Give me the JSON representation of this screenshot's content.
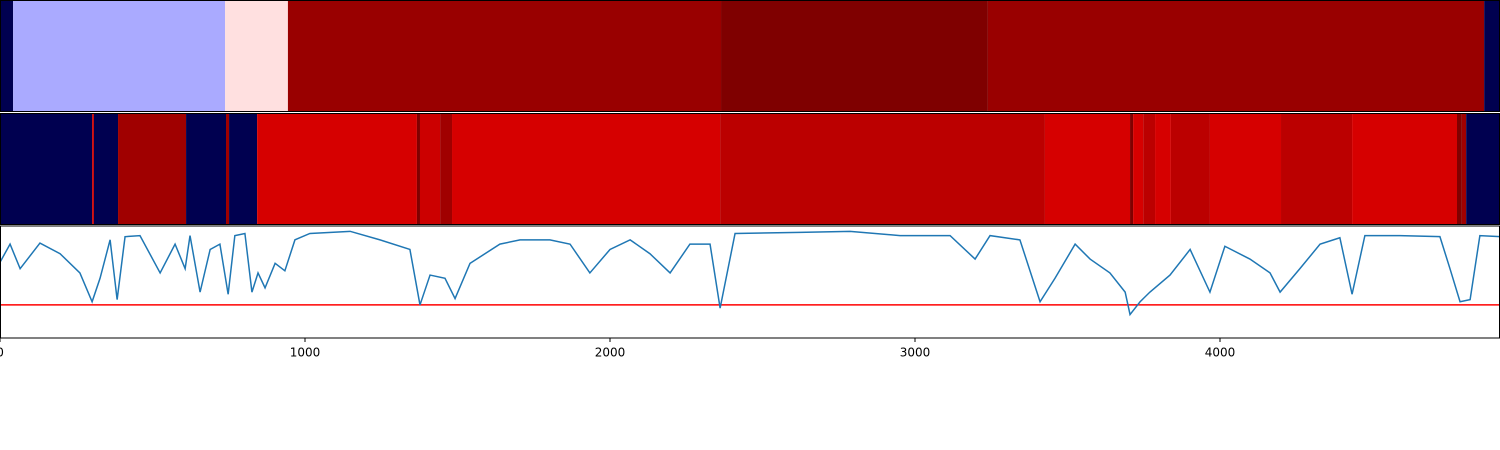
{
  "chart_data": [
    {
      "type": "segments",
      "xlim": [
        0,
        4918
      ],
      "edges": [
        0,
        43,
        738,
        944,
        2364,
        3239,
        4866,
        4918
      ],
      "colors": [
        "#000050",
        "#aaaaff",
        "#ffe0e0",
        "#990000",
        "#7f0000",
        "#990000",
        "#000050"
      ]
    },
    {
      "type": "segments",
      "xlim": [
        0,
        4918
      ],
      "edges": [
        0,
        302,
        308,
        387,
        610,
        741,
        751,
        843,
        1367,
        1377,
        1443,
        1482,
        2361,
        3426,
        3705,
        3715,
        3748,
        3787,
        3839,
        3967,
        4200,
        4433,
        4777,
        4793,
        4807,
        4918
      ],
      "colors": [
        "#000050",
        "#cc0000",
        "#000050",
        "#a00000",
        "#000050",
        "#a00000",
        "#000050",
        "#d60000",
        "#800000",
        "#cc0000",
        "#a00000",
        "#d60000",
        "#bb0000",
        "#d60000",
        "#800000",
        "#d60000",
        "#bb0000",
        "#d60000",
        "#bb0000",
        "#d60000",
        "#bb0000",
        "#d60000",
        "#800000",
        "#a00000",
        "#000050"
      ]
    },
    {
      "type": "line",
      "xlim": [
        0,
        4918
      ],
      "ylim": [
        0,
        1.05
      ],
      "xticks": [
        0,
        1000,
        2000,
        3000,
        4000
      ],
      "threshold": 0.31,
      "threshold_color": "#ff0000",
      "series": [
        {
          "color": "#1f77b4",
          "x": [
            0,
            33,
            66,
            131,
            197,
            262,
            302,
            328,
            361,
            384,
            410,
            459,
            525,
            574,
            607,
            623,
            656,
            689,
            721,
            748,
            770,
            803,
            826,
            846,
            869,
            902,
            934,
            967,
            1016,
            1148,
            1246,
            1344,
            1377,
            1410,
            1459,
            1492,
            1541,
            1639,
            1705,
            1803,
            1869,
            1934,
            2000,
            2066,
            2131,
            2197,
            2262,
            2328,
            2361,
            2410,
            2623,
            2787,
            2951,
            3115,
            3197,
            3246,
            3344,
            3410,
            3459,
            3525,
            3574,
            3639,
            3689,
            3705,
            3738,
            3770,
            3836,
            3902,
            3967,
            4016,
            4098,
            4164,
            4197,
            4262,
            4328,
            4393,
            4433,
            4475,
            4590,
            4721,
            4754,
            4787,
            4820,
            4852,
            4918
          ],
          "values": [
            0.71,
            0.88,
            0.65,
            0.89,
            0.79,
            0.61,
            0.34,
            0.56,
            0.92,
            0.36,
            0.95,
            0.96,
            0.61,
            0.88,
            0.65,
            0.96,
            0.43,
            0.83,
            0.88,
            0.41,
            0.96,
            0.98,
            0.43,
            0.61,
            0.47,
            0.7,
            0.63,
            0.92,
            0.98,
            1.0,
            0.92,
            0.83,
            0.31,
            0.59,
            0.56,
            0.37,
            0.7,
            0.88,
            0.92,
            0.92,
            0.88,
            0.61,
            0.83,
            0.92,
            0.79,
            0.61,
            0.88,
            0.88,
            0.28,
            0.98,
            0.99,
            1.0,
            0.96,
            0.96,
            0.74,
            0.96,
            0.92,
            0.34,
            0.56,
            0.88,
            0.74,
            0.61,
            0.43,
            0.22,
            0.34,
            0.43,
            0.59,
            0.83,
            0.43,
            0.86,
            0.74,
            0.61,
            0.43,
            0.65,
            0.88,
            0.94,
            0.41,
            0.96,
            0.96,
            0.95,
            0.65,
            0.34,
            0.36,
            0.96,
            0.95
          ]
        }
      ]
    }
  ]
}
